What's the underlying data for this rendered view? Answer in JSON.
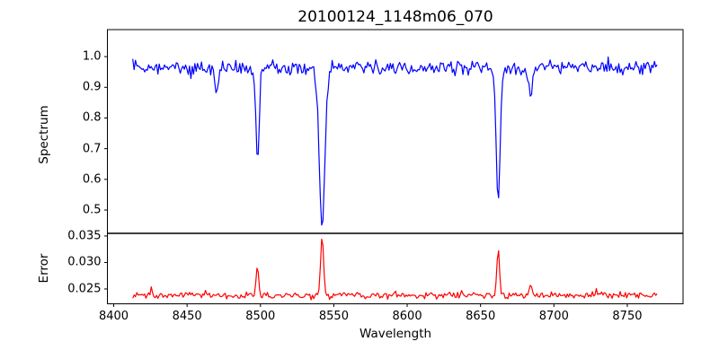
{
  "title": "20100124_1148m06_070",
  "xlabel": "Wavelength",
  "colors": {
    "background": "#ffffff",
    "text": "#000000",
    "axis": "#000000",
    "spectrum_line": "#0000ff",
    "error_line": "#ff0000"
  },
  "x_axis": {
    "lim": [
      8395.7,
      8788.0
    ],
    "ticks": [
      {
        "value": 8400,
        "label": "8400"
      },
      {
        "value": 8450,
        "label": "8450"
      },
      {
        "value": 8500,
        "label": "8500"
      },
      {
        "value": 8550,
        "label": "8550"
      },
      {
        "value": 8600,
        "label": "8600"
      },
      {
        "value": 8650,
        "label": "8650"
      },
      {
        "value": 8700,
        "label": "8700"
      },
      {
        "value": 8750,
        "label": "8750"
      }
    ]
  },
  "noise_seed": 20100124,
  "chart_data": [
    {
      "type": "line",
      "series_name": "spectrum",
      "title": "20100124_1148m06_070",
      "xlabel": "Wavelength",
      "ylabel": "Spectrum",
      "color": "#0000ff",
      "x_start": 8413,
      "x_end": 8771,
      "x_step": 0.9,
      "xlim": [
        8395.7,
        8788.0
      ],
      "ylim": [
        0.424,
        1.088
      ],
      "yticks": [
        {
          "value": 1.0,
          "label": "1.0"
        },
        {
          "value": 0.9,
          "label": "0.9"
        },
        {
          "value": 0.8,
          "label": "0.8"
        },
        {
          "value": 0.7,
          "label": "0.7"
        },
        {
          "value": 0.6,
          "label": "0.6"
        },
        {
          "value": 0.5,
          "label": "0.5"
        }
      ],
      "baseline": 0.965,
      "noise_amplitude": 0.034,
      "absorption_lines": [
        {
          "center": 8470,
          "depth": 0.08,
          "sigma": 1.3
        },
        {
          "center": 8498,
          "depth": 0.315,
          "sigma": 1.1
        },
        {
          "center": 8542,
          "depth": 0.52,
          "sigma": 1.9
        },
        {
          "center": 8662,
          "depth": 0.44,
          "sigma": 1.4
        },
        {
          "center": 8684,
          "depth": 0.095,
          "sigma": 1.2
        }
      ]
    },
    {
      "type": "line",
      "series_name": "error",
      "xlabel": "Wavelength",
      "ylabel": "Error",
      "color": "#ff0000",
      "x_start": 8413,
      "x_end": 8771,
      "x_step": 0.9,
      "xlim": [
        8395.7,
        8788.0
      ],
      "ylim": [
        0.0222,
        0.0355
      ],
      "yticks": [
        {
          "value": 0.025,
          "label": "0.025"
        },
        {
          "value": 0.03,
          "label": "0.030"
        },
        {
          "value": 0.035,
          "label": "0.035"
        }
      ],
      "baseline": 0.0238,
      "noise_amplitude": 0.0009,
      "peaks": [
        {
          "center": 8425,
          "height": 0.0013,
          "sigma": 1.2
        },
        {
          "center": 8498,
          "height": 0.0056,
          "sigma": 0.9
        },
        {
          "center": 8542,
          "height": 0.0112,
          "sigma": 1.0
        },
        {
          "center": 8662,
          "height": 0.0088,
          "sigma": 0.9
        },
        {
          "center": 8684,
          "height": 0.0019,
          "sigma": 0.9
        }
      ]
    }
  ]
}
